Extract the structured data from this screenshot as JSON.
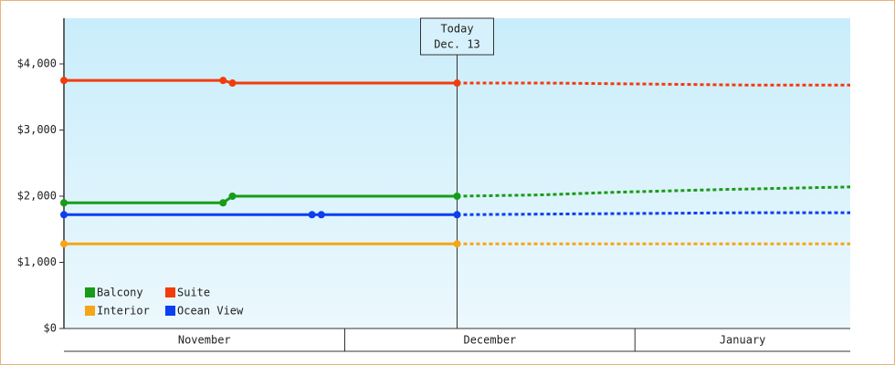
{
  "chart_data": {
    "type": "line",
    "ylim": [
      0,
      4690
    ],
    "yticks": [
      {
        "value": 0,
        "label": "$0"
      },
      {
        "value": 1000,
        "label": "$1,000"
      },
      {
        "value": 2000,
        "label": "$2,000"
      },
      {
        "value": 3000,
        "label": "$3,000"
      },
      {
        "value": 4000,
        "label": "$4,000"
      }
    ],
    "xlim": [
      0,
      84
    ],
    "x_bands": [
      {
        "label": "November",
        "start": 0,
        "end": 30
      },
      {
        "label": "December",
        "start": 30,
        "end": 61
      },
      {
        "label": "January",
        "start": 61,
        "end": 84
      }
    ],
    "annotation": {
      "lines": [
        "Today",
        "Dec. 13"
      ],
      "x": 42
    },
    "legend": "bottom-left",
    "series": [
      {
        "name": "Balcony",
        "color": "#179c17",
        "x": [
          0,
          17,
          18,
          42
        ],
        "values": [
          1900,
          1900,
          2000,
          2000
        ],
        "forecast_x": [
          42,
          51,
          59,
          70,
          84
        ],
        "forecast_values": [
          2000,
          2020,
          2060,
          2100,
          2140
        ]
      },
      {
        "name": "Suite",
        "color": "#f23c0c",
        "x": [
          0,
          17,
          18,
          42
        ],
        "values": [
          3750,
          3750,
          3710,
          3710
        ],
        "forecast_x": [
          42,
          52,
          73,
          84
        ],
        "forecast_values": [
          3710,
          3710,
          3680,
          3680
        ]
      },
      {
        "name": "Interior",
        "color": "#f5a516",
        "x": [
          0,
          42
        ],
        "values": [
          1280,
          1280
        ],
        "forecast_x": [
          42,
          84
        ],
        "forecast_values": [
          1280,
          1280
        ]
      },
      {
        "name": "Ocean View",
        "color": "#0b3ff0",
        "x": [
          0,
          26.5,
          27.5,
          42
        ],
        "values": [
          1720,
          1720,
          1720,
          1720
        ],
        "forecast_x": [
          42,
          52,
          73,
          84
        ],
        "forecast_values": [
          1720,
          1730,
          1750,
          1750
        ]
      }
    ]
  }
}
